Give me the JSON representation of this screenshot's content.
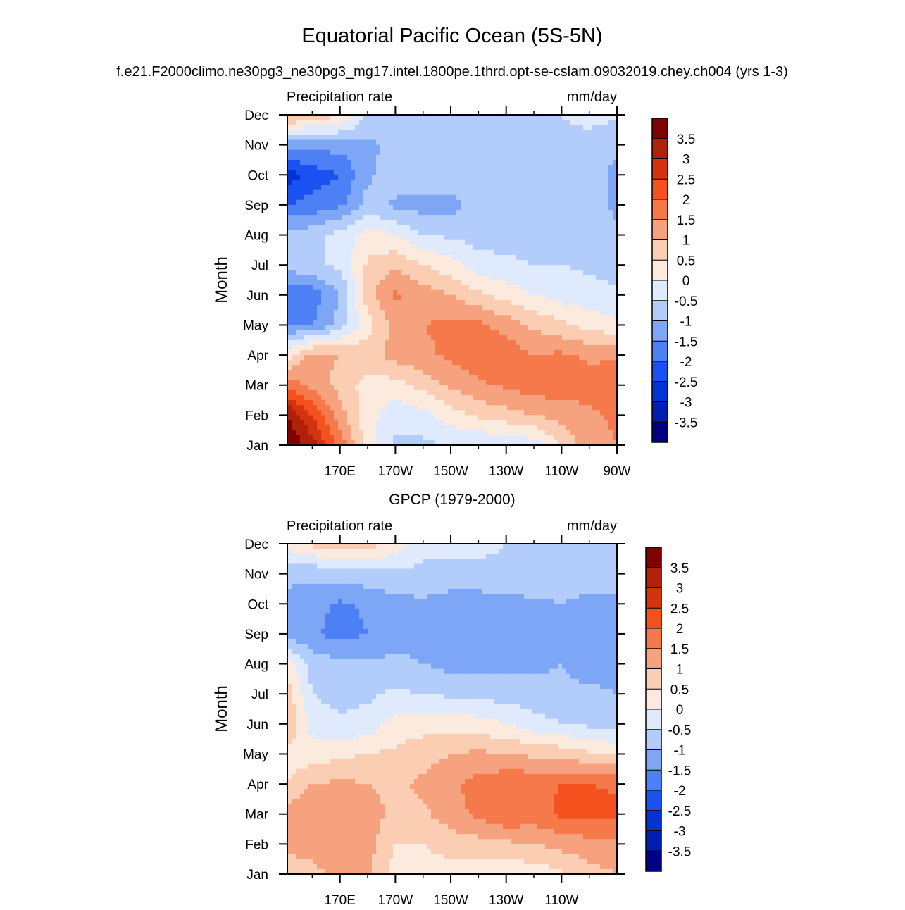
{
  "figure": {
    "title": "Equatorial Pacific Ocean (5S-5N)",
    "subtitle": "f.e21.F2000climo.ne30pg3_ne30pg3_mg17.intel.1800pe.1thrd.opt-se-cslam.09032019.chey.ch004 (yrs 1-3)"
  },
  "colorbar": {
    "levels": [
      3.5,
      3,
      2.5,
      2,
      1.5,
      1,
      0.5,
      0,
      -0.5,
      -1,
      -1.5,
      -2,
      -2.5,
      -3,
      -3.5
    ],
    "labels": [
      "3.5",
      "3",
      "2.5",
      "2",
      "1.5",
      "1",
      "0.5",
      "0",
      "-0.5",
      "-1",
      "-1.5",
      "-2",
      "-2.5",
      "-3",
      "-3.5"
    ],
    "colors": [
      "#800000",
      "#b0210a",
      "#d43310",
      "#f4511e",
      "#f6794b",
      "#f7a27f",
      "#fbcdb2",
      "#fdeadf",
      "#dfeafd",
      "#b2cdfb",
      "#7ea6f7",
      "#4d80f5",
      "#1a52f1",
      "#0032d4",
      "#001fb0",
      "#000080"
    ]
  },
  "chart_data": [
    {
      "type": "heatmap",
      "title": "",
      "left_label": "Precipitation rate",
      "right_label": "mm/day",
      "ylabel": "Month",
      "xlabel": "",
      "y_ticks": [
        "Jan",
        "Feb",
        "Mar",
        "Apr",
        "May",
        "Jun",
        "Jul",
        "Aug",
        "Sep",
        "Oct",
        "Nov",
        "Dec"
      ],
      "x_ticks": [
        "170E",
        "170W",
        "150W",
        "130W",
        "110W",
        "90W"
      ],
      "x_tick_lon": [
        170,
        190,
        210,
        230,
        250,
        270
      ],
      "xlim": [
        151,
        270
      ],
      "z_units": "mm/day",
      "x": [
        151,
        160,
        170,
        180,
        190,
        200,
        210,
        220,
        230,
        240,
        250,
        260,
        270
      ],
      "values": [
        [
          4.0,
          3.2,
          1.8,
          0.2,
          -0.6,
          -0.6,
          -0.5,
          -0.5,
          -0.4,
          -0.3,
          0.6,
          1.3,
          1.5
        ],
        [
          3.5,
          2.5,
          1.2,
          0.2,
          -0.3,
          -0.2,
          0.3,
          0.6,
          0.8,
          1.0,
          1.2,
          1.4,
          1.6
        ],
        [
          1.8,
          1.3,
          0.8,
          0.3,
          0.3,
          0.7,
          1.1,
          1.4,
          1.6,
          1.8,
          1.8,
          1.7,
          2.0
        ],
        [
          0.3,
          1.2,
          1.0,
          0.8,
          1.2,
          1.4,
          1.6,
          1.9,
          1.8,
          1.5,
          1.6,
          1.4,
          1.4
        ],
        [
          -1.6,
          -1.5,
          -0.8,
          0.3,
          1.2,
          1.5,
          1.6,
          1.6,
          1.3,
          0.9,
          0.6,
          0.3,
          0.1
        ],
        [
          -1.8,
          -1.8,
          -1.0,
          0.8,
          1.6,
          1.3,
          1.0,
          0.6,
          0.3,
          0.0,
          -0.2,
          -0.3,
          -0.4
        ],
        [
          -0.8,
          -0.6,
          -0.4,
          0.6,
          0.9,
          0.5,
          0.2,
          -0.3,
          -0.4,
          -0.5,
          -0.5,
          -0.6,
          -0.7
        ],
        [
          -0.8,
          -0.7,
          -0.3,
          0.2,
          0.0,
          -0.5,
          -0.6,
          -0.7,
          -0.7,
          -0.7,
          -0.7,
          -0.7,
          -0.8
        ],
        [
          -2.0,
          -1.8,
          -1.6,
          -0.8,
          -1.1,
          -1.2,
          -1.2,
          -0.7,
          -0.6,
          -0.6,
          -0.6,
          -0.6,
          -1.2
        ],
        [
          -2.8,
          -2.3,
          -2.0,
          -1.1,
          -0.7,
          -0.6,
          -0.6,
          -0.6,
          -0.6,
          -0.6,
          -0.6,
          -0.6,
          -1.2
        ],
        [
          -1.2,
          -1.3,
          -1.3,
          -1.1,
          -0.9,
          -0.6,
          -0.6,
          -0.6,
          -0.6,
          -0.6,
          -0.6,
          -0.6,
          -0.9
        ],
        [
          1.2,
          0.8,
          0.6,
          -0.6,
          -0.7,
          -0.6,
          -0.5,
          -0.5,
          -0.5,
          -0.5,
          -0.5,
          -0.4,
          -0.4
        ]
      ]
    },
    {
      "type": "heatmap",
      "title": "GPCP (1979-2000)",
      "left_label": "Precipitation rate",
      "right_label": "mm/day",
      "ylabel": "Month",
      "xlabel": "",
      "y_ticks": [
        "Jan",
        "Feb",
        "Mar",
        "Apr",
        "May",
        "Jun",
        "Jul",
        "Aug",
        "Sep",
        "Oct",
        "Nov",
        "Dec"
      ],
      "x_ticks": [
        "170E",
        "170W",
        "150W",
        "130W",
        "110W"
      ],
      "x_tick_lon": [
        170,
        190,
        210,
        230,
        250
      ],
      "xlim": [
        151,
        270
      ],
      "z_units": "mm/day",
      "x": [
        151,
        160,
        170,
        180,
        190,
        200,
        210,
        220,
        230,
        240,
        250,
        260,
        270
      ],
      "values": [
        [
          0.6,
          0.8,
          1.2,
          1.1,
          0.2,
          0.3,
          0.3,
          0.2,
          0.1,
          0.2,
          0.4,
          0.8,
          1.0
        ],
        [
          1.2,
          1.3,
          1.4,
          1.2,
          0.5,
          0.5,
          0.7,
          0.8,
          0.9,
          1.0,
          1.2,
          1.3,
          1.4
        ],
        [
          1.3,
          1.4,
          1.5,
          1.3,
          0.8,
          0.9,
          1.3,
          1.6,
          2.0,
          1.8,
          2.1,
          2.2,
          2.2
        ],
        [
          0.5,
          1.0,
          1.1,
          1.0,
          0.9,
          1.1,
          1.4,
          1.7,
          1.9,
          1.9,
          2.0,
          2.0,
          1.9
        ],
        [
          0.3,
          0.2,
          0.4,
          0.5,
          0.6,
          0.8,
          1.0,
          1.1,
          1.0,
          0.9,
          0.8,
          0.6,
          0.4
        ],
        [
          1.0,
          -0.2,
          -0.4,
          -0.3,
          0.2,
          0.3,
          0.3,
          0.2,
          0.0,
          -0.3,
          -0.5,
          -0.6,
          -0.7
        ],
        [
          0.7,
          -0.5,
          -0.7,
          -0.6,
          -0.4,
          -0.5,
          -0.6,
          -0.7,
          -0.7,
          -0.8,
          -0.9,
          -0.9,
          -1.0
        ],
        [
          0.3,
          -0.7,
          -0.9,
          -0.9,
          -0.9,
          -1.0,
          -1.2,
          -1.2,
          -1.2,
          -1.1,
          -1.0,
          -1.2,
          -1.2
        ],
        [
          -1.3,
          -1.4,
          -1.7,
          -1.5,
          -1.2,
          -1.1,
          -1.3,
          -1.4,
          -1.4,
          -1.3,
          -1.0,
          -1.3,
          -1.4
        ],
        [
          -1.1,
          -1.3,
          -1.6,
          -1.4,
          -1.2,
          -1.1,
          -1.3,
          -1.3,
          -1.2,
          -1.1,
          -1.0,
          -1.2,
          -1.2
        ],
        [
          -0.9,
          -0.9,
          -0.7,
          -0.7,
          -0.6,
          -0.6,
          -0.6,
          -0.6,
          -0.6,
          -0.6,
          -0.6,
          -0.6,
          -0.7
        ],
        [
          0.2,
          0.6,
          0.9,
          0.7,
          0.3,
          -0.4,
          -0.4,
          -0.4,
          -0.5,
          -0.5,
          -0.5,
          -0.5,
          -0.5
        ]
      ]
    }
  ]
}
